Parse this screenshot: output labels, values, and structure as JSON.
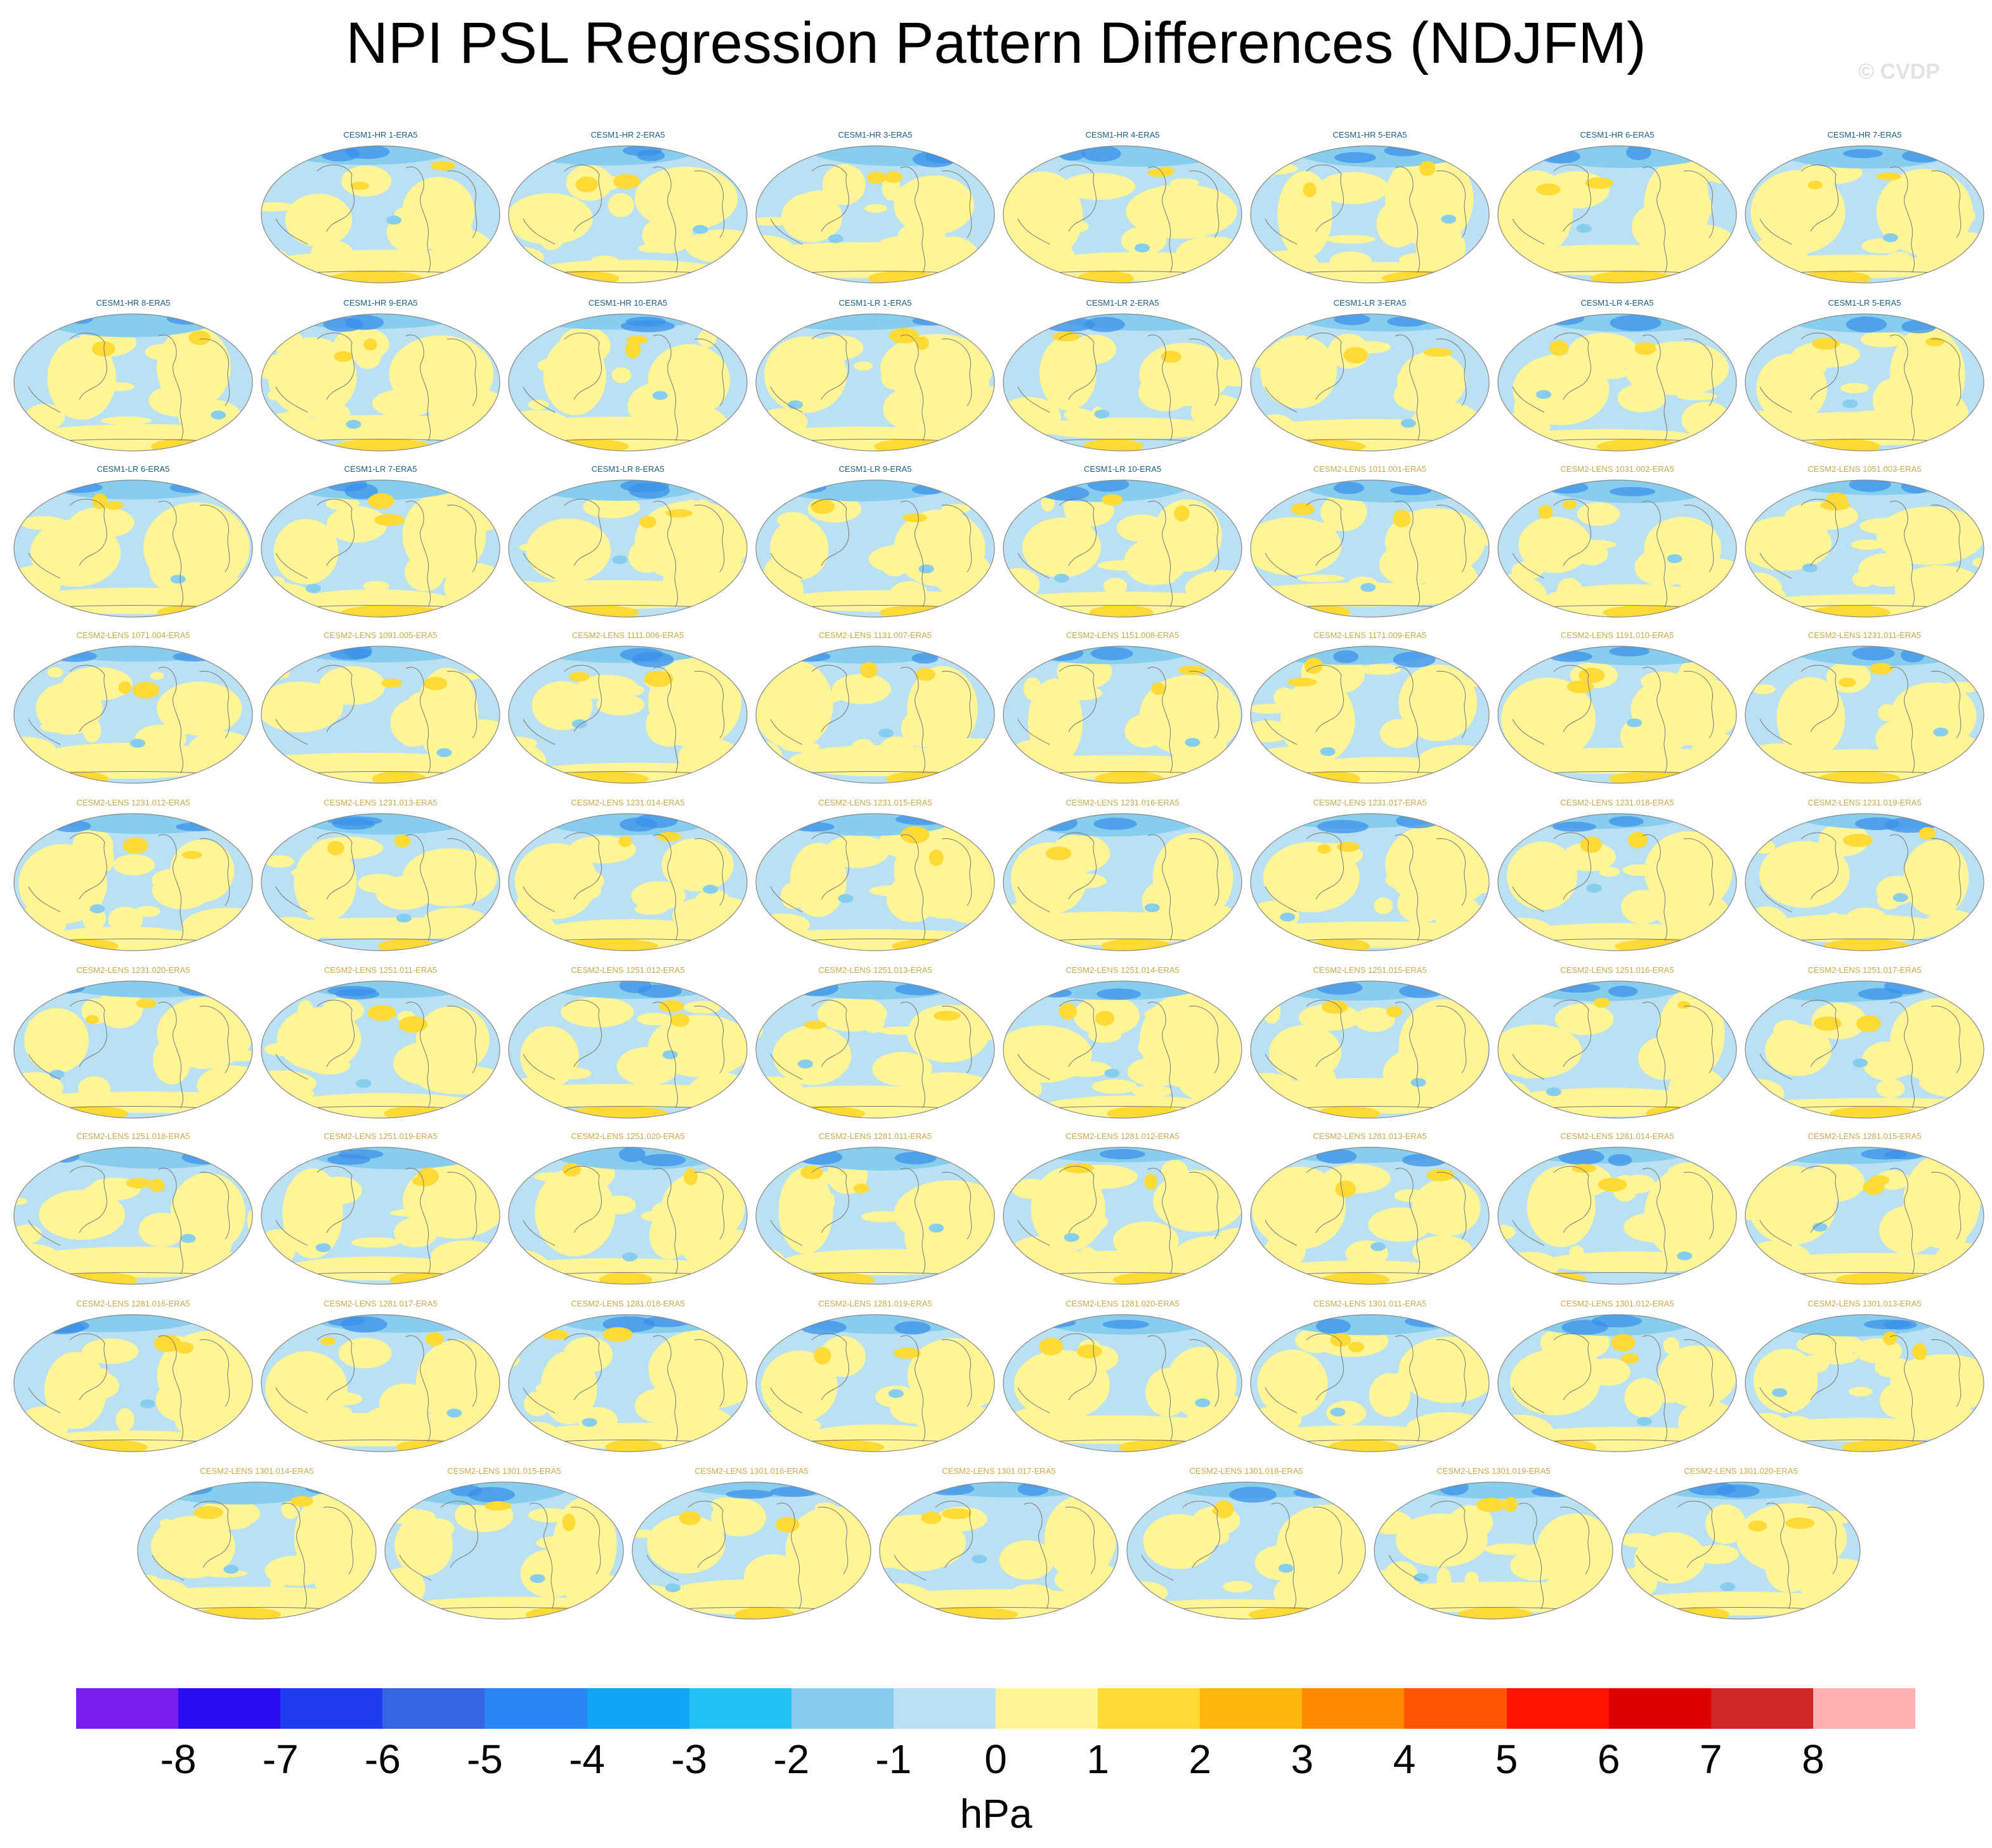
{
  "title": "NPI PSL Regression Pattern Differences (NDJFM)",
  "watermark": "© CVDP",
  "colors": {
    "cesm1_label": "#1a5f86",
    "cesm2_label": "#c9a94a",
    "ocean_neg": "#b9e0f3",
    "land_pos": "#fff597",
    "border": "#888888"
  },
  "panels": [
    "CESM1-HR 1-ERA5",
    "CESM1-HR 2-ERA5",
    "CESM1-HR 3-ERA5",
    "CESM1-HR 4-ERA5",
    "CESM1-HR 5-ERA5",
    "CESM1-HR 6-ERA5",
    "CESM1-HR 7-ERA5",
    "CESM1-HR 8-ERA5",
    "CESM1-HR 9-ERA5",
    "CESM1-HR 10-ERA5",
    "CESM1-LR 1-ERA5",
    "CESM1-LR 2-ERA5",
    "CESM1-LR 3-ERA5",
    "CESM1-LR 4-ERA5",
    "CESM1-LR 5-ERA5",
    "CESM1-LR 6-ERA5",
    "CESM1-LR 7-ERA5",
    "CESM1-LR 8-ERA5",
    "CESM1-LR 9-ERA5",
    "CESM1-LR 10-ERA5",
    "CESM2-LENS 1011.001-ERA5",
    "CESM2-LENS 1031.002-ERA5",
    "CESM2-LENS 1051.003-ERA5",
    "CESM2-LENS 1071.004-ERA5",
    "CESM2-LENS 1091.005-ERA5",
    "CESM2-LENS 1111.006-ERA5",
    "CESM2-LENS 1131.007-ERA5",
    "CESM2-LENS 1151.008-ERA5",
    "CESM2-LENS 1171.009-ERA5",
    "CESM2-LENS 1191.010-ERA5",
    "CESM2-LENS 1231.011-ERA5",
    "CESM2-LENS 1231.012-ERA5",
    "CESM2-LENS 1231.013-ERA5",
    "CESM2-LENS 1231.014-ERA5",
    "CESM2-LENS 1231.015-ERA5",
    "CESM2-LENS 1231.016-ERA5",
    "CESM2-LENS 1231.017-ERA5",
    "CESM2-LENS 1231.018-ERA5",
    "CESM2-LENS 1231.019-ERA5",
    "CESM2-LENS 1231.020-ERA5",
    "CESM2-LENS 1251.011-ERA5",
    "CESM2-LENS 1251.012-ERA5",
    "CESM2-LENS 1251.013-ERA5",
    "CESM2-LENS 1251.014-ERA5",
    "CESM2-LENS 1251.015-ERA5",
    "CESM2-LENS 1251.016-ERA5",
    "CESM2-LENS 1251.017-ERA5",
    "CESM2-LENS 1251.018-ERA5",
    "CESM2-LENS 1251.019-ERA5",
    "CESM2-LENS 1251.020-ERA5",
    "CESM2-LENS 1281.011-ERA5",
    "CESM2-LENS 1281.012-ERA5",
    "CESM2-LENS 1281.013-ERA5",
    "CESM2-LENS 1281.014-ERA5",
    "CESM2-LENS 1281.015-ERA5",
    "CESM2-LENS 1281.016-ERA5",
    "CESM2-LENS 1281.017-ERA5",
    "CESM2-LENS 1281.018-ERA5",
    "CESM2-LENS 1281.019-ERA5",
    "CESM2-LENS 1281.020-ERA5",
    "CESM2-LENS 1301.011-ERA5",
    "CESM2-LENS 1301.012-ERA5",
    "CESM2-LENS 1301.013-ERA5",
    "CESM2-LENS 1301.014-ERA5",
    "CESM2-LENS 1301.015-ERA5",
    "CESM2-LENS 1301.016-ERA5",
    "CESM2-LENS 1301.017-ERA5",
    "CESM2-LENS 1301.018-ERA5",
    "CESM2-LENS 1301.019-ERA5",
    "CESM2-LENS 1301.020-ERA5"
  ],
  "chart_data": {
    "type": "heatmap",
    "description_of_grid": "small-multiple map panels",
    "variable": "PSL",
    "season": "NDJFM",
    "colorbar": {
      "ticks": [
        "-8",
        "-7",
        "-6",
        "-5",
        "-4",
        "-3",
        "-2",
        "-1",
        "0",
        "1",
        "2",
        "3",
        "4",
        "5",
        "6",
        "7",
        "8"
      ],
      "colors": [
        "#7b1cf0",
        "#2a0df0",
        "#1f3df0",
        "#3565e0",
        "#2a86f5",
        "#0ea6f5",
        "#22c2f5",
        "#86cdee",
        "#b9e0f3",
        "#fff597",
        "#ffda35",
        "#ffb70b",
        "#ff8a00",
        "#ff5400",
        "#ff1400",
        "#de0000",
        "#d02828",
        "#ffb0b0"
      ],
      "units": "hPa"
    }
  }
}
